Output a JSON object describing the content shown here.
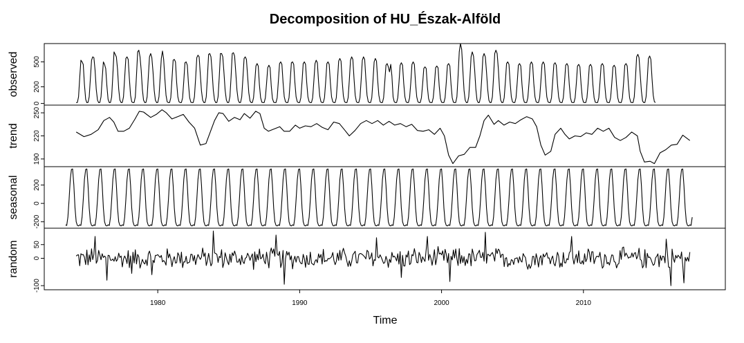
{
  "chart_data": {
    "type": "line",
    "title": "Decomposition of HU_Észak-Alföld",
    "xlabel": "Time",
    "x_start": 1974.25,
    "x_end": 2017.5,
    "frequency": 12,
    "xlim": [
      1972,
      2020
    ],
    "x_ticks": [
      1980,
      1990,
      2000,
      2010
    ],
    "x_tick_labels": [
      "1980",
      "1990",
      "2000",
      "2010"
    ],
    "panels": [
      {
        "name": "observed",
        "ylabel": "observed",
        "ylim": [
          -20,
          720
        ],
        "y_ticks": [
          0,
          200,
          500
        ],
        "y_tick_labels": [
          "0",
          "200",
          "500"
        ],
        "values": [
          10,
          12,
          80,
          310,
          520,
          500,
          470,
          230,
          50,
          10,
          12,
          80,
          300,
          520,
          560,
          550,
          400,
          170,
          40,
          10,
          12,
          80,
          300,
          500,
          470,
          420,
          210,
          50,
          10,
          12,
          80,
          340,
          620,
          590,
          560,
          410,
          170,
          40,
          10,
          12,
          80,
          310,
          540,
          560,
          530,
          300,
          100,
          20,
          10,
          12,
          80,
          340,
          620,
          640,
          560,
          400,
          170,
          40,
          10,
          12,
          80,
          320,
          560,
          600,
          550,
          380,
          160,
          40,
          10,
          12,
          80,
          310,
          540,
          630,
          530,
          300,
          100,
          20,
          10,
          12,
          70,
          290,
          520,
          530,
          500,
          250,
          80,
          20,
          10,
          12,
          70,
          270,
          490,
          500,
          460,
          230,
          70,
          15,
          10,
          12,
          80,
          300,
          550,
          580,
          560,
          350,
          150,
          40,
          10,
          12,
          80,
          320,
          590,
          600,
          560,
          380,
          160,
          40,
          10,
          12,
          80,
          320,
          600,
          600,
          560,
          370,
          160,
          40,
          10,
          12,
          80,
          320,
          600,
          610,
          570,
          370,
          160,
          40,
          10,
          12,
          80,
          300,
          540,
          560,
          530,
          330,
          130,
          30,
          10,
          12,
          70,
          250,
          450,
          480,
          450,
          220,
          70,
          15,
          10,
          12,
          70,
          240,
          430,
          460,
          430,
          210,
          60,
          15,
          10,
          12,
          70,
          270,
          480,
          500,
          470,
          250,
          80,
          20,
          10,
          12,
          70,
          270,
          490,
          500,
          470,
          250,
          80,
          20,
          10,
          12,
          70,
          260,
          480,
          500,
          470,
          250,
          80,
          20,
          10,
          12,
          70,
          270,
          480,
          520,
          490,
          260,
          90,
          20,
          10,
          12,
          70,
          260,
          480,
          500,
          470,
          250,
          80,
          20,
          10,
          12,
          70,
          280,
          510,
          540,
          510,
          270,
          90,
          20,
          10,
          12,
          70,
          280,
          520,
          560,
          530,
          300,
          100,
          20,
          10,
          12,
          70,
          280,
          520,
          560,
          530,
          300,
          100,
          20,
          10,
          12,
          70,
          270,
          500,
          540,
          510,
          280,
          100,
          20,
          10,
          12,
          70,
          260,
          460,
          480,
          440,
          380,
          470,
          330,
          80,
          20,
          10,
          12,
          70,
          250,
          460,
          490,
          460,
          240,
          80,
          20,
          10,
          12,
          70,
          250,
          470,
          500,
          470,
          240,
          80,
          20,
          10,
          12,
          70,
          230,
          420,
          440,
          420,
          200,
          60,
          15,
          10,
          12,
          70,
          230,
          430,
          450,
          430,
          210,
          60,
          15,
          10,
          12,
          70,
          250,
          460,
          480,
          450,
          230,
          70,
          15,
          10,
          12,
          80,
          330,
          620,
          720,
          650,
          400,
          160,
          40,
          10,
          12,
          80,
          300,
          560,
          620,
          570,
          400,
          170,
          40,
          10,
          12,
          80,
          300,
          560,
          600,
          560,
          380,
          170,
          40,
          10,
          12,
          80,
          320,
          600,
          640,
          600,
          420,
          180,
          40,
          10,
          12,
          70,
          260,
          480,
          500,
          470,
          250,
          80,
          20,
          10,
          12,
          70,
          250,
          460,
          480,
          450,
          230,
          70,
          15,
          10,
          12,
          70,
          250,
          470,
          500,
          470,
          240,
          80,
          20,
          10,
          12,
          70,
          260,
          470,
          500,
          470,
          250,
          80,
          20,
          10,
          12,
          70,
          260,
          470,
          490,
          460,
          240,
          80,
          20,
          10,
          12,
          70,
          250,
          460,
          480,
          450,
          230,
          70,
          15,
          10,
          12,
          70,
          240,
          450,
          470,
          440,
          230,
          70,
          15,
          10,
          12,
          70,
          240,
          450,
          470,
          440,
          220,
          70,
          15,
          10,
          12,
          70,
          250,
          460,
          480,
          450,
          230,
          70,
          15,
          10,
          12,
          70,
          240,
          440,
          460,
          430,
          220,
          70,
          15,
          10,
          12,
          70,
          250,
          460,
          480,
          450,
          230,
          70,
          15,
          10,
          12,
          80,
          300,
          560,
          590,
          550,
          350,
          150,
          30,
          10,
          12,
          80,
          290,
          540,
          570,
          530,
          300,
          100,
          20,
          12
        ]
      },
      {
        "name": "trend",
        "ylabel": "trend",
        "ylim": [
          180,
          260
        ],
        "y_ticks": [
          190,
          220,
          250
        ],
        "y_tick_labels": [
          "190",
          "220",
          "250"
        ],
        "points": [
          [
            1974.25,
            225
          ],
          [
            1974.8,
            219
          ],
          [
            1975.3,
            222
          ],
          [
            1975.8,
            228
          ],
          [
            1976.2,
            240
          ],
          [
            1976.6,
            244
          ],
          [
            1976.9,
            238
          ],
          [
            1977.2,
            226
          ],
          [
            1977.6,
            226
          ],
          [
            1978.0,
            230
          ],
          [
            1978.4,
            242
          ],
          [
            1978.7,
            252
          ],
          [
            1979.0,
            251
          ],
          [
            1979.5,
            244
          ],
          [
            1979.9,
            248
          ],
          [
            1980.3,
            254
          ],
          [
            1980.6,
            250
          ],
          [
            1981.0,
            242
          ],
          [
            1981.4,
            245
          ],
          [
            1981.8,
            248
          ],
          [
            1982.2,
            238
          ],
          [
            1982.6,
            230
          ],
          [
            1983.0,
            208
          ],
          [
            1983.4,
            210
          ],
          [
            1983.7,
            225
          ],
          [
            1984.0,
            240
          ],
          [
            1984.3,
            250
          ],
          [
            1984.6,
            249
          ],
          [
            1985.0,
            239
          ],
          [
            1985.4,
            244
          ],
          [
            1985.8,
            241
          ],
          [
            1986.1,
            249
          ],
          [
            1986.5,
            243
          ],
          [
            1986.9,
            252
          ],
          [
            1987.2,
            249
          ],
          [
            1987.5,
            230
          ],
          [
            1987.8,
            226
          ],
          [
            1988.2,
            229
          ],
          [
            1988.6,
            232
          ],
          [
            1988.9,
            226
          ],
          [
            1989.3,
            226
          ],
          [
            1989.7,
            234
          ],
          [
            1990.0,
            230
          ],
          [
            1990.4,
            233
          ],
          [
            1990.8,
            232
          ],
          [
            1991.2,
            236
          ],
          [
            1991.6,
            231
          ],
          [
            1992.0,
            228
          ],
          [
            1992.4,
            238
          ],
          [
            1992.8,
            236
          ],
          [
            1993.2,
            227
          ],
          [
            1993.5,
            220
          ],
          [
            1993.9,
            227
          ],
          [
            1994.3,
            236
          ],
          [
            1994.7,
            240
          ],
          [
            1995.1,
            236
          ],
          [
            1995.5,
            240
          ],
          [
            1995.9,
            234
          ],
          [
            1996.3,
            239
          ],
          [
            1996.7,
            234
          ],
          [
            1997.1,
            236
          ],
          [
            1997.5,
            232
          ],
          [
            1997.9,
            235
          ],
          [
            1998.3,
            227
          ],
          [
            1998.7,
            226
          ],
          [
            1999.1,
            228
          ],
          [
            1999.5,
            222
          ],
          [
            1999.9,
            230
          ],
          [
            2000.2,
            220
          ],
          [
            2000.5,
            195
          ],
          [
            2000.8,
            184
          ],
          [
            2001.2,
            194
          ],
          [
            2001.6,
            196
          ],
          [
            2002.0,
            205
          ],
          [
            2002.4,
            205
          ],
          [
            2002.7,
            220
          ],
          [
            2003.0,
            240
          ],
          [
            2003.3,
            247
          ],
          [
            2003.7,
            235
          ],
          [
            2004.0,
            240
          ],
          [
            2004.4,
            234
          ],
          [
            2004.8,
            238
          ],
          [
            2005.2,
            236
          ],
          [
            2005.6,
            241
          ],
          [
            2006.0,
            245
          ],
          [
            2006.4,
            242
          ],
          [
            2006.7,
            232
          ],
          [
            2007.0,
            208
          ],
          [
            2007.3,
            195
          ],
          [
            2007.7,
            200
          ],
          [
            2008.0,
            222
          ],
          [
            2008.4,
            230
          ],
          [
            2008.7,
            222
          ],
          [
            2009.0,
            216
          ],
          [
            2009.4,
            220
          ],
          [
            2009.8,
            219
          ],
          [
            2010.2,
            224
          ],
          [
            2010.6,
            222
          ],
          [
            2011.0,
            230
          ],
          [
            2011.4,
            226
          ],
          [
            2011.8,
            230
          ],
          [
            2012.2,
            218
          ],
          [
            2012.6,
            214
          ],
          [
            2013.0,
            218
          ],
          [
            2013.4,
            225
          ],
          [
            2013.8,
            220
          ],
          [
            2014.0,
            200
          ],
          [
            2014.3,
            186
          ],
          [
            2014.7,
            187
          ],
          [
            2015.0,
            184
          ],
          [
            2015.4,
            198
          ],
          [
            2015.8,
            202
          ],
          [
            2016.2,
            208
          ],
          [
            2016.6,
            209
          ],
          [
            2017.0,
            221
          ],
          [
            2017.5,
            214
          ]
        ]
      },
      {
        "name": "seasonal",
        "ylabel": "seasonal",
        "ylim": [
          -270,
          400
        ],
        "y_ticks": [
          -200,
          0,
          200
        ],
        "y_tick_labels": [
          "-200",
          "0",
          "200"
        ],
        "monthly_pattern": [
          -233,
          -240,
          -150,
          40,
          260,
          370,
          375,
          200,
          -50,
          -200,
          -240,
          -245
        ],
        "x_start": 1973.5,
        "x_end": 2017.67
      },
      {
        "name": "random",
        "ylabel": "random",
        "ylim": [
          -115,
          110
        ],
        "y_ticks": [
          -100,
          0,
          50
        ],
        "y_tick_labels": [
          "-100",
          "0",
          "50"
        ],
        "amplitude": 45,
        "outliers": [
          [
            1975.6,
            80
          ],
          [
            1976.4,
            -80
          ],
          [
            1978.2,
            -55
          ],
          [
            1979.6,
            -60
          ],
          [
            1983.9,
            100
          ],
          [
            1988.3,
            85
          ],
          [
            1988.9,
            -95
          ],
          [
            1995.4,
            75
          ],
          [
            1997.2,
            -70
          ],
          [
            1999.0,
            80
          ],
          [
            2000.6,
            -85
          ],
          [
            2003.1,
            95
          ],
          [
            2009.2,
            80
          ],
          [
            2015.8,
            70
          ],
          [
            2016.2,
            -100
          ],
          [
            2017.1,
            -90
          ]
        ]
      }
    ]
  }
}
